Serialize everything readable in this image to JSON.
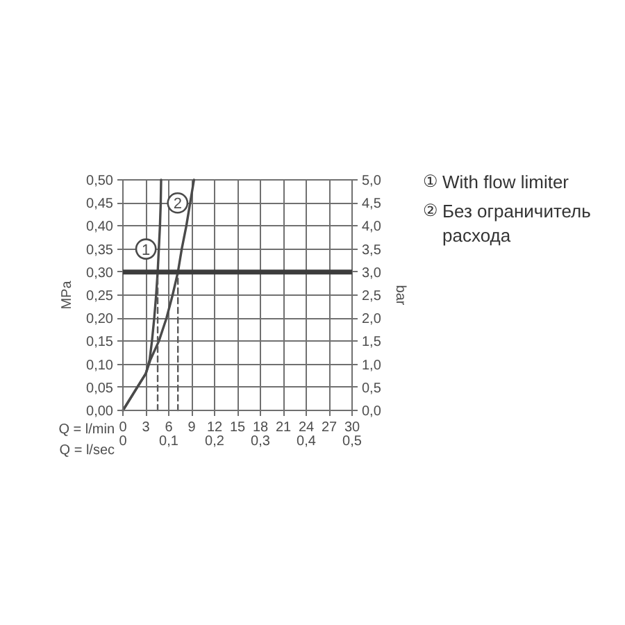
{
  "chart_data": {
    "type": "line",
    "xlabel": "Q = l/min",
    "x2label": "Q = l/sec",
    "ylabel": "MPa",
    "y2label": "bar",
    "xlim": [
      0,
      30
    ],
    "xticks": [
      0,
      3,
      6,
      9,
      12,
      15,
      18,
      21,
      24,
      27,
      30
    ],
    "x2lim": [
      0,
      0.5
    ],
    "x2ticks": [
      0,
      {
        "value": 0.1,
        "label": "0,1"
      },
      {
        "value": 0.2,
        "label": "0,2"
      },
      {
        "value": 0.3,
        "label": "0,3"
      },
      {
        "value": 0.4,
        "label": "0,4"
      },
      {
        "value": 0.5,
        "label": "0,5"
      }
    ],
    "ylim": [
      0,
      0.5
    ],
    "yticks": [
      {
        "value": 0,
        "label": "0,00"
      },
      {
        "value": 0.05,
        "label": "0,05"
      },
      {
        "value": 0.1,
        "label": "0,10"
      },
      {
        "value": 0.15,
        "label": "0,15"
      },
      {
        "value": 0.2,
        "label": "0,20"
      },
      {
        "value": 0.25,
        "label": "0,25"
      },
      {
        "value": 0.3,
        "label": "0,30"
      },
      {
        "value": 0.35,
        "label": "0,35"
      },
      {
        "value": 0.4,
        "label": "0,40"
      },
      {
        "value": 0.45,
        "label": "0,45"
      },
      {
        "value": 0.5,
        "label": "0,50"
      }
    ],
    "y2lim": [
      0,
      5
    ],
    "y2ticks": [
      {
        "value": 0,
        "label": "0,0"
      },
      {
        "value": 0.5,
        "label": "0,5"
      },
      {
        "value": 1,
        "label": "1,0"
      },
      {
        "value": 1.5,
        "label": "1,5"
      },
      {
        "value": 2,
        "label": "2,0"
      },
      {
        "value": 2.5,
        "label": "2,5"
      },
      {
        "value": 3,
        "label": "3,0"
      },
      {
        "value": 3.5,
        "label": "3,5"
      },
      {
        "value": 4,
        "label": "4,0"
      },
      {
        "value": 4.5,
        "label": "4,5"
      },
      {
        "value": 5,
        "label": "5,0"
      }
    ],
    "grid": true,
    "series": [
      {
        "color": "#4a4a4a",
        "line_style": "solid",
        "x": [
          0,
          1.5,
          3.0,
          3.5,
          3.8,
          4.1,
          4.35,
          4.55,
          4.7,
          4.85,
          4.95,
          5.0
        ],
        "values": [
          0,
          0.04,
          0.08,
          0.11,
          0.15,
          0.2,
          0.25,
          0.3,
          0.35,
          0.4,
          0.45,
          0.5
        ]
      },
      {
        "color": "#4a4a4a",
        "line_style": "solid",
        "x": [
          0,
          1.5,
          3.0,
          3.6,
          4.7,
          5.7,
          6.5,
          7.2,
          7.7,
          8.3,
          8.8,
          9.3
        ],
        "values": [
          0,
          0.04,
          0.08,
          0.11,
          0.15,
          0.2,
          0.25,
          0.3,
          0.35,
          0.4,
          0.45,
          0.5
        ]
      },
      {
        "color": "#5a5a5a",
        "line_style": "dashed",
        "x": [
          4.55,
          4.55
        ],
        "values": [
          0,
          0.3
        ]
      },
      {
        "color": "#5a5a5a",
        "line_style": "dashed",
        "x": [
          7.2,
          7.2
        ],
        "values": [
          0,
          0.3
        ]
      }
    ],
    "ref_lines": [
      {
        "axis": "y",
        "value": 0.3,
        "color": "#3c3c3c"
      }
    ],
    "annotations": [
      {
        "text": "1",
        "x": 4.65,
        "y": 0.35
      },
      {
        "text": "2",
        "x": 8.8,
        "y": 0.45
      },
      "① With flow limiter",
      "② Без ограничитель расхода"
    ]
  }
}
